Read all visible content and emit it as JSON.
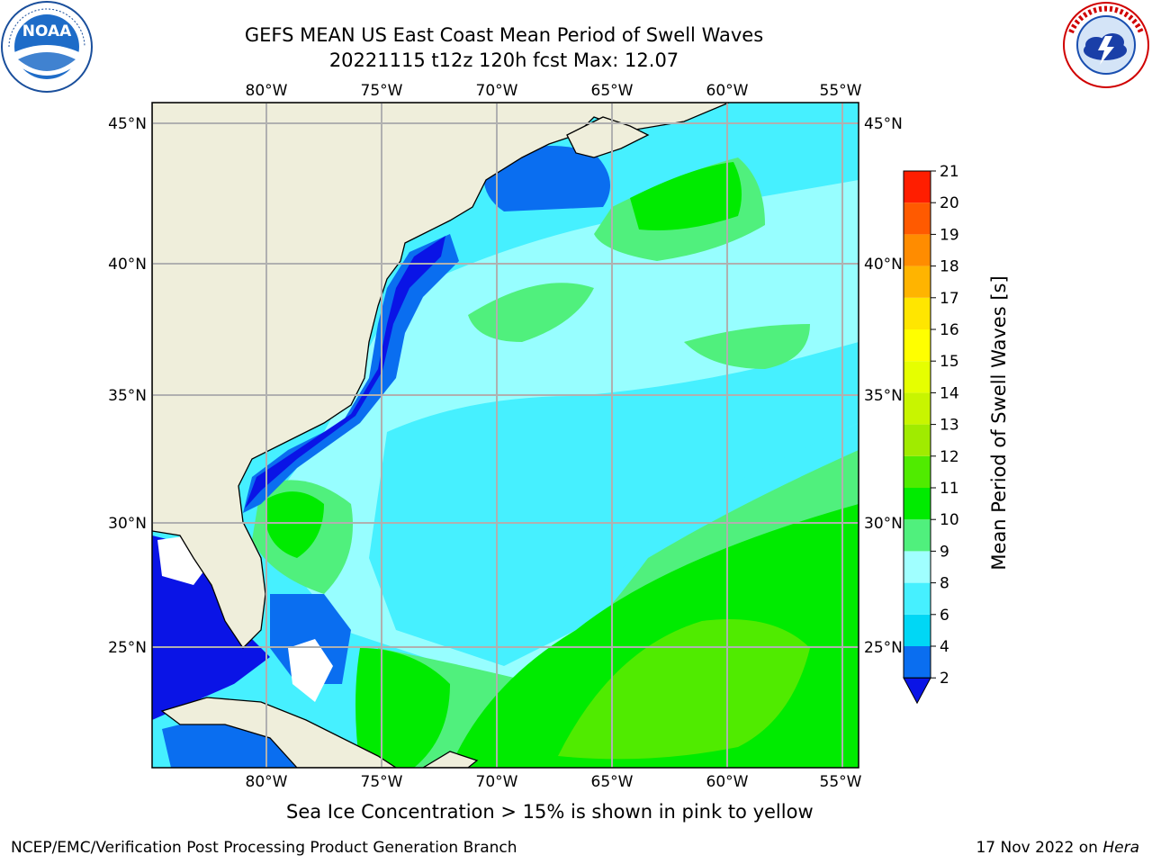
{
  "title": {
    "line1": "GEFS MEAN US East Coast Mean Period of Swell Waves",
    "line2": "20221115 t12z 120h fcst   Max: 12.07"
  },
  "map": {
    "lon_labels": [
      "80°W",
      "75°W",
      "70°W",
      "65°W",
      "60°W",
      "55°W"
    ],
    "lat_labels": [
      "45°N",
      "40°N",
      "35°N",
      "30°N",
      "25°N"
    ],
    "lon_range": [
      "85°W",
      "54°W"
    ],
    "lat_range": [
      "20.5°N",
      "45.8°N"
    ],
    "land_color": "#efeedb",
    "grid": "on"
  },
  "colorbar": {
    "label": "Mean Period of Swell Waves [s]",
    "ticks": [
      "2",
      "4",
      "6",
      "8",
      "9",
      "10",
      "11",
      "12",
      "13",
      "14",
      "15",
      "16",
      "17",
      "18",
      "19",
      "20",
      "21"
    ],
    "colors": [
      "#0a6ef0",
      "#00d7f5",
      "#46f0ff",
      "#a0ffff",
      "#50f07d",
      "#00eb00",
      "#50eb00",
      "#a0eb00",
      "#c8f500",
      "#e6ff00",
      "#ffff00",
      "#ffe600",
      "#ffb400",
      "#ff8c00",
      "#ff5a00",
      "#ff1e00",
      "#ff0000"
    ],
    "under_color": "#0a14e6"
  },
  "ice_note": "Sea Ice Concentration > 15% is shown in pink to yellow",
  "footer": {
    "left": "NCEP/EMC/Verification Post Processing Product Generation Branch",
    "right_date": "17 Nov 2022 on ",
    "right_host": "Hera"
  }
}
